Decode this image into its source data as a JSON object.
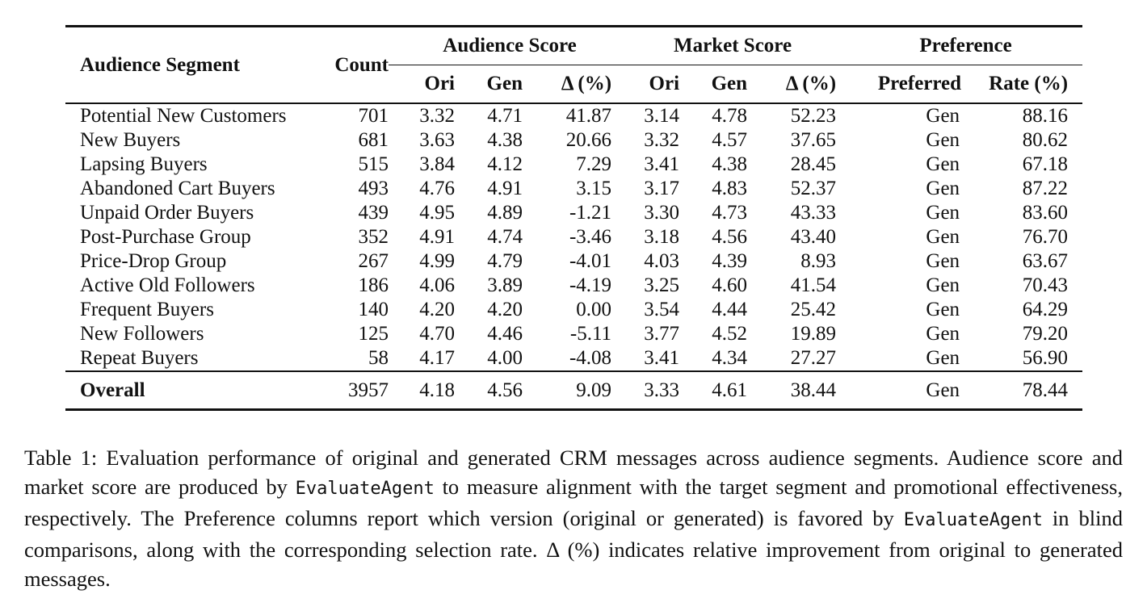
{
  "table": {
    "headers": {
      "segment": "Audience Segment",
      "count": "Count",
      "audience_group": "Audience Score",
      "market_group": "Market Score",
      "preference_group": "Preference",
      "ori": "Ori",
      "gen": "Gen",
      "delta": "Δ (%)",
      "preferred": "Preferred",
      "rate": "Rate (%)"
    },
    "rows": [
      {
        "segment": "Potential New Customers",
        "count": "701",
        "aud_ori": "3.32",
        "aud_gen": "4.71",
        "aud_delta": "41.87",
        "mkt_ori": "3.14",
        "mkt_gen": "4.78",
        "mkt_delta": "52.23",
        "preferred": "Gen",
        "rate": "88.16"
      },
      {
        "segment": "New Buyers",
        "count": "681",
        "aud_ori": "3.63",
        "aud_gen": "4.38",
        "aud_delta": "20.66",
        "mkt_ori": "3.32",
        "mkt_gen": "4.57",
        "mkt_delta": "37.65",
        "preferred": "Gen",
        "rate": "80.62"
      },
      {
        "segment": "Lapsing Buyers",
        "count": "515",
        "aud_ori": "3.84",
        "aud_gen": "4.12",
        "aud_delta": "7.29",
        "mkt_ori": "3.41",
        "mkt_gen": "4.38",
        "mkt_delta": "28.45",
        "preferred": "Gen",
        "rate": "67.18"
      },
      {
        "segment": "Abandoned Cart Buyers",
        "count": "493",
        "aud_ori": "4.76",
        "aud_gen": "4.91",
        "aud_delta": "3.15",
        "mkt_ori": "3.17",
        "mkt_gen": "4.83",
        "mkt_delta": "52.37",
        "preferred": "Gen",
        "rate": "87.22"
      },
      {
        "segment": "Unpaid Order Buyers",
        "count": "439",
        "aud_ori": "4.95",
        "aud_gen": "4.89",
        "aud_delta": "-1.21",
        "mkt_ori": "3.30",
        "mkt_gen": "4.73",
        "mkt_delta": "43.33",
        "preferred": "Gen",
        "rate": "83.60"
      },
      {
        "segment": "Post-Purchase Group",
        "count": "352",
        "aud_ori": "4.91",
        "aud_gen": "4.74",
        "aud_delta": "-3.46",
        "mkt_ori": "3.18",
        "mkt_gen": "4.56",
        "mkt_delta": "43.40",
        "preferred": "Gen",
        "rate": "76.70"
      },
      {
        "segment": "Price-Drop Group",
        "count": "267",
        "aud_ori": "4.99",
        "aud_gen": "4.79",
        "aud_delta": "-4.01",
        "mkt_ori": "4.03",
        "mkt_gen": "4.39",
        "mkt_delta": "8.93",
        "preferred": "Gen",
        "rate": "63.67"
      },
      {
        "segment": "Active Old Followers",
        "count": "186",
        "aud_ori": "4.06",
        "aud_gen": "3.89",
        "aud_delta": "-4.19",
        "mkt_ori": "3.25",
        "mkt_gen": "4.60",
        "mkt_delta": "41.54",
        "preferred": "Gen",
        "rate": "70.43"
      },
      {
        "segment": "Frequent Buyers",
        "count": "140",
        "aud_ori": "4.20",
        "aud_gen": "4.20",
        "aud_delta": "0.00",
        "mkt_ori": "3.54",
        "mkt_gen": "4.44",
        "mkt_delta": "25.42",
        "preferred": "Gen",
        "rate": "64.29"
      },
      {
        "segment": "New Followers",
        "count": "125",
        "aud_ori": "4.70",
        "aud_gen": "4.46",
        "aud_delta": "-5.11",
        "mkt_ori": "3.77",
        "mkt_gen": "4.52",
        "mkt_delta": "19.89",
        "preferred": "Gen",
        "rate": "79.20"
      },
      {
        "segment": "Repeat Buyers",
        "count": "58",
        "aud_ori": "4.17",
        "aud_gen": "4.00",
        "aud_delta": "-4.08",
        "mkt_ori": "3.41",
        "mkt_gen": "4.34",
        "mkt_delta": "27.27",
        "preferred": "Gen",
        "rate": "56.90"
      }
    ],
    "overall": {
      "segment": "Overall",
      "count": "3957",
      "aud_ori": "4.18",
      "aud_gen": "4.56",
      "aud_delta": "9.09",
      "mkt_ori": "3.33",
      "mkt_gen": "4.61",
      "mkt_delta": "38.44",
      "preferred": "Gen",
      "rate": "78.44"
    }
  },
  "caption": {
    "part1": "Table 1: Evaluation performance of original and generated CRM messages across audience segments. Audience score and market score are produced by ",
    "agent1": "EvaluateAgent",
    "part2": " to measure alignment with the target segment and promotional effectiveness, respectively. The Preference columns report which version (original or generated) is favored by ",
    "agent2": "EvaluateAgent",
    "part3": " in blind comparisons, along with the corresponding selection rate. Δ (%) indicates relative improvement from original to generated messages."
  }
}
